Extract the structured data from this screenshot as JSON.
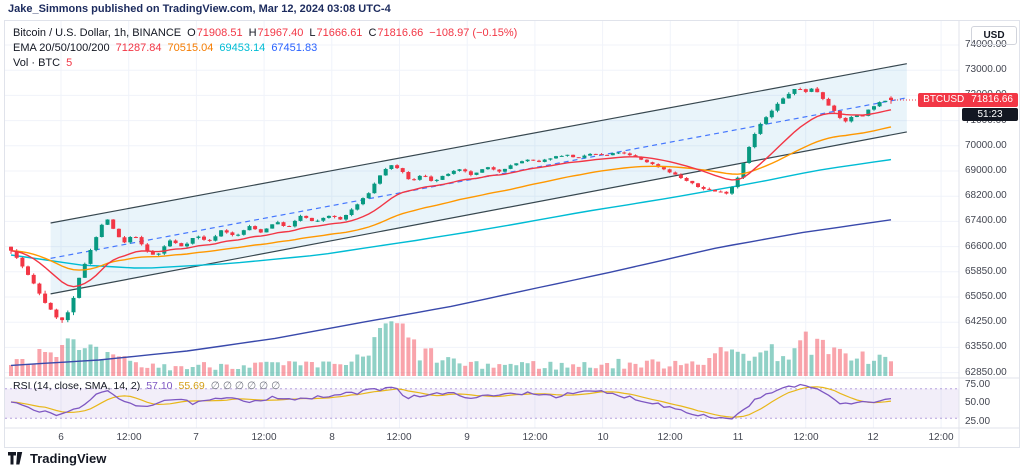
{
  "attribution": "Jake_Simmons published on TradingView.com, Mar 12, 2024 03:08 UTC-4",
  "legend": {
    "symbol": "Bitcoin / U.S. Dollar, 1h, BINANCE",
    "ohlc": [
      {
        "k": "O",
        "v": "71908.51"
      },
      {
        "k": "H",
        "v": "71967.40"
      },
      {
        "k": "L",
        "v": "71666.61"
      },
      {
        "k": "C",
        "v": "71816.66"
      }
    ],
    "change": "−108.97 (−0.15%)",
    "ema_label": "EMA 20/50/100/200",
    "ema_values": [
      "71287.84",
      "70515.04",
      "69453.14",
      "67451.83"
    ],
    "vol_label": "Vol · BTC",
    "vol_value": "5"
  },
  "price_axis": {
    "currency": "USD",
    "ticks": [
      "74000.00",
      "73000.00",
      "72000.00",
      "71000.00",
      "70000.00",
      "69000.00",
      "68200.00",
      "67400.00",
      "66600.00",
      "65850.00",
      "65050.00",
      "64250.00",
      "63550.00",
      "62850.00"
    ],
    "badge_symbol": "BTCUSD",
    "badge_price": "71816.66",
    "countdown": "51:23"
  },
  "rsi_pane": {
    "label": "RSI (14, close, SMA, 14, 2)",
    "value": "57.10",
    "sma_value": "55.69",
    "flags": "∅ ∅ ∅ ∅ ∅ ∅",
    "ticks": [
      "75.00",
      "50.00",
      "25.00"
    ]
  },
  "time_axis": {
    "labels": [
      "6",
      "12:00",
      "7",
      "12:00",
      "8",
      "12:00",
      "9",
      "12:00",
      "10",
      "12:00",
      "11",
      "12:00",
      "12",
      "12:00"
    ]
  },
  "footer": {
    "brand": "TradingView"
  },
  "chart_data": {
    "type": "candlestick",
    "title": "Bitcoin / U.S. Dollar",
    "pair": "BTCUSD",
    "exchange": "BINANCE",
    "interval": "1h",
    "date_range": "Mar 6 2024 - Mar 12 2024",
    "last_candle": {
      "open": 71908.51,
      "high": 71967.4,
      "low": 71666.61,
      "close": 71816.66,
      "change": -108.97,
      "change_pct": -0.15
    },
    "ema": {
      "periods": [
        20,
        50,
        100,
        200
      ],
      "current": [
        71287.84,
        70515.04,
        69453.14,
        67451.83
      ]
    },
    "rsi_current": {
      "rsi": 57.1,
      "sma": 55.69,
      "length": 14,
      "source": "close",
      "ma_type": "SMA",
      "ma_length": 14
    },
    "price_axis_ticks": [
      74000,
      73000,
      72000,
      71000,
      70000,
      69000,
      68200,
      67400,
      66600,
      65850,
      65050,
      64250,
      63550,
      62850
    ],
    "rsi_axis_ticks": [
      75,
      50,
      25
    ],
    "candle_count": 156,
    "close_path": [
      [
        0.0,
        66500
      ],
      [
        0.012,
        66050
      ],
      [
        0.025,
        65500
      ],
      [
        0.038,
        64900
      ],
      [
        0.05,
        64450
      ],
      [
        0.058,
        64300
      ],
      [
        0.068,
        64700
      ],
      [
        0.078,
        65700
      ],
      [
        0.09,
        66500
      ],
      [
        0.1,
        67100
      ],
      [
        0.108,
        67550
      ],
      [
        0.118,
        67050
      ],
      [
        0.128,
        66700
      ],
      [
        0.14,
        67000
      ],
      [
        0.152,
        66500
      ],
      [
        0.165,
        66300
      ],
      [
        0.18,
        66800
      ],
      [
        0.195,
        66600
      ],
      [
        0.21,
        66950
      ],
      [
        0.225,
        66750
      ],
      [
        0.24,
        67150
      ],
      [
        0.255,
        66900
      ],
      [
        0.27,
        67250
      ],
      [
        0.285,
        67050
      ],
      [
        0.3,
        67400
      ],
      [
        0.315,
        67200
      ],
      [
        0.33,
        67600
      ],
      [
        0.345,
        67350
      ],
      [
        0.36,
        67600
      ],
      [
        0.375,
        67450
      ],
      [
        0.39,
        67850
      ],
      [
        0.405,
        68250
      ],
      [
        0.42,
        68900
      ],
      [
        0.432,
        69250
      ],
      [
        0.445,
        68950
      ],
      [
        0.455,
        68650
      ],
      [
        0.468,
        68900
      ],
      [
        0.48,
        68650
      ],
      [
        0.495,
        68900
      ],
      [
        0.51,
        69050
      ],
      [
        0.525,
        68850
      ],
      [
        0.54,
        69150
      ],
      [
        0.555,
        69000
      ],
      [
        0.57,
        69250
      ],
      [
        0.585,
        69450
      ],
      [
        0.6,
        69350
      ],
      [
        0.615,
        69550
      ],
      [
        0.63,
        69650
      ],
      [
        0.645,
        69500
      ],
      [
        0.66,
        69700
      ],
      [
        0.675,
        69600
      ],
      [
        0.69,
        69750
      ],
      [
        0.705,
        69600
      ],
      [
        0.72,
        69400
      ],
      [
        0.74,
        69100
      ],
      [
        0.76,
        68800
      ],
      [
        0.78,
        68500
      ],
      [
        0.8,
        68350
      ],
      [
        0.815,
        68300
      ],
      [
        0.828,
        68900
      ],
      [
        0.84,
        70100
      ],
      [
        0.85,
        70800
      ],
      [
        0.86,
        71200
      ],
      [
        0.872,
        71700
      ],
      [
        0.883,
        72050
      ],
      [
        0.893,
        72300
      ],
      [
        0.903,
        72150
      ],
      [
        0.912,
        72300
      ],
      [
        0.922,
        71900
      ],
      [
        0.932,
        71500
      ],
      [
        0.942,
        71100
      ],
      [
        0.95,
        70950
      ],
      [
        0.958,
        71250
      ],
      [
        0.966,
        71150
      ],
      [
        0.975,
        71450
      ],
      [
        0.985,
        71700
      ],
      [
        1.0,
        71817
      ]
    ],
    "volume_profile": [
      [
        0,
        16
      ],
      [
        0.04,
        26
      ],
      [
        0.055,
        34
      ],
      [
        0.08,
        24
      ],
      [
        0.11,
        18
      ],
      [
        0.15,
        10
      ],
      [
        0.2,
        9
      ],
      [
        0.25,
        12
      ],
      [
        0.3,
        11
      ],
      [
        0.35,
        10
      ],
      [
        0.4,
        16
      ],
      [
        0.435,
        58
      ],
      [
        0.455,
        30
      ],
      [
        0.47,
        22
      ],
      [
        0.52,
        10
      ],
      [
        0.58,
        12
      ],
      [
        0.63,
        10
      ],
      [
        0.68,
        12
      ],
      [
        0.73,
        12
      ],
      [
        0.78,
        16
      ],
      [
        0.815,
        22
      ],
      [
        0.83,
        26
      ],
      [
        0.85,
        22
      ],
      [
        0.87,
        24
      ],
      [
        0.89,
        28
      ],
      [
        0.91,
        34
      ],
      [
        0.925,
        24
      ],
      [
        0.94,
        20
      ],
      [
        0.955,
        26
      ],
      [
        0.97,
        18
      ],
      [
        1,
        16
      ]
    ],
    "rsi_path": [
      [
        0,
        52
      ],
      [
        0.02,
        44
      ],
      [
        0.05,
        34
      ],
      [
        0.07,
        40
      ],
      [
        0.095,
        60
      ],
      [
        0.108,
        66
      ],
      [
        0.125,
        55
      ],
      [
        0.15,
        46
      ],
      [
        0.18,
        56
      ],
      [
        0.21,
        50
      ],
      [
        0.24,
        57
      ],
      [
        0.27,
        53
      ],
      [
        0.3,
        59
      ],
      [
        0.33,
        55
      ],
      [
        0.36,
        60
      ],
      [
        0.39,
        64
      ],
      [
        0.42,
        70
      ],
      [
        0.435,
        74
      ],
      [
        0.45,
        58
      ],
      [
        0.47,
        62
      ],
      [
        0.5,
        63
      ],
      [
        0.53,
        58
      ],
      [
        0.56,
        62
      ],
      [
        0.59,
        65
      ],
      [
        0.62,
        60
      ],
      [
        0.645,
        64
      ],
      [
        0.665,
        67
      ],
      [
        0.685,
        62
      ],
      [
        0.705,
        58
      ],
      [
        0.725,
        52
      ],
      [
        0.75,
        45
      ],
      [
        0.775,
        37
      ],
      [
        0.8,
        31
      ],
      [
        0.818,
        29
      ],
      [
        0.832,
        42
      ],
      [
        0.85,
        58
      ],
      [
        0.87,
        67
      ],
      [
        0.885,
        72
      ],
      [
        0.9,
        75
      ],
      [
        0.915,
        68
      ],
      [
        0.93,
        60
      ],
      [
        0.945,
        50
      ],
      [
        0.957,
        47
      ],
      [
        0.968,
        54
      ],
      [
        0.978,
        50
      ],
      [
        0.99,
        56
      ],
      [
        1,
        57.1
      ]
    ],
    "ema100_path": [
      [
        0,
        66350
      ],
      [
        0.08,
        66050
      ],
      [
        0.15,
        65950
      ],
      [
        0.25,
        66100
      ],
      [
        0.35,
        66350
      ],
      [
        0.45,
        66750
      ],
      [
        0.55,
        67200
      ],
      [
        0.65,
        67700
      ],
      [
        0.75,
        68150
      ],
      [
        0.85,
        68650
      ],
      [
        0.93,
        69100
      ],
      [
        1,
        69453
      ]
    ],
    "ema200_path": [
      [
        0,
        63050
      ],
      [
        0.1,
        63200
      ],
      [
        0.2,
        63450
      ],
      [
        0.3,
        63800
      ],
      [
        0.4,
        64250
      ],
      [
        0.5,
        64750
      ],
      [
        0.6,
        65350
      ],
      [
        0.7,
        65950
      ],
      [
        0.8,
        66550
      ],
      [
        0.9,
        67050
      ],
      [
        1,
        67452
      ]
    ],
    "channel": {
      "upper": [
        [
          0.045,
          67350
        ],
        [
          1,
          73150
        ]
      ],
      "lower": [
        [
          0.045,
          65150
        ],
        [
          1,
          70450
        ]
      ],
      "median": [
        [
          0.045,
          66250
        ],
        [
          1,
          71800
        ]
      ]
    },
    "colors": {
      "up": "#089981",
      "down": "#f23645",
      "ema20": "#f23645",
      "ema50": "#ff9800",
      "ema100": "#00bcd4",
      "ema200": "#3949ab",
      "rsi": "#7e57c2",
      "rsi_ma": "#e8b71a",
      "channel_fill": "rgba(42,150,210,0.10)",
      "channel_line": "#37474f",
      "median_line": "#2962ff",
      "rsi_band_fill": "rgba(126,87,194,0.10)",
      "rsi_band_line": "rgba(126,87,194,0.55)",
      "grid": "#f0f3fa",
      "axis_text": "#434651"
    }
  }
}
